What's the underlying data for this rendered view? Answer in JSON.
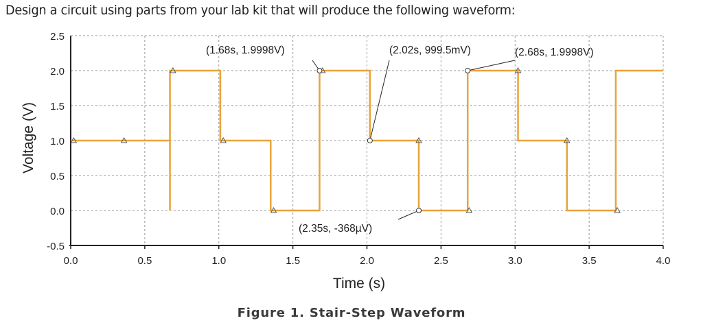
{
  "prompt": "Design a circuit using parts from your lab kit that will produce the following waveform:",
  "caption": "Figure 1. Stair-Step Waveform",
  "chart_data": {
    "type": "line",
    "title": "",
    "xlabel": "Time (s)",
    "ylabel": "Voltage (V)",
    "xlim": [
      0,
      4.0
    ],
    "ylim": [
      -0.5,
      2.5
    ],
    "xticks": [
      "0.0",
      "0.5",
      "1.0",
      "1.5",
      "2.0",
      "2.5",
      "3.0",
      "3.5",
      "4.0"
    ],
    "yticks": [
      "2.5",
      "2.0",
      "1.5",
      "1.0",
      "0.5",
      "0.0",
      "-0.5"
    ],
    "grid": true,
    "line_color": "#E8A33A",
    "series": [
      {
        "x": [
          0,
          0.67,
          0.67,
          0.67,
          0.67,
          1.01,
          1.01,
          1.35,
          1.35,
          1.68,
          1.68,
          2.02,
          2.02,
          2.35,
          2.35,
          2.68,
          2.68,
          3.02,
          3.02,
          3.35,
          3.35,
          3.68,
          3.68,
          4.0
        ],
        "y": [
          1,
          1,
          0,
          0,
          2,
          2,
          1,
          1,
          0,
          0,
          2,
          2,
          1,
          1,
          0,
          0,
          2,
          2,
          1,
          1,
          0,
          0,
          2,
          2
        ]
      }
    ],
    "triangle_markers": [
      [
        0.02,
        1
      ],
      [
        0.36,
        1
      ],
      [
        0.69,
        2
      ],
      [
        1.03,
        1
      ],
      [
        1.37,
        0
      ],
      [
        1.7,
        2
      ],
      [
        2.35,
        1
      ],
      [
        2.69,
        0
      ],
      [
        3.02,
        2
      ],
      [
        3.35,
        1
      ],
      [
        3.69,
        0
      ]
    ],
    "annotations": [
      {
        "text": "(1.68s, 1.9998V)",
        "x": 1.68,
        "y": 1.9998
      },
      {
        "text": "(2.02s, 999.5mV)",
        "x": 2.02,
        "y": 0.9995
      },
      {
        "text": "(2.68s, 1.9998V)",
        "x": 2.68,
        "y": 1.9998
      },
      {
        "text": "(2.35s, -368µV)",
        "x": 2.35,
        "y": -0.000368
      }
    ]
  }
}
